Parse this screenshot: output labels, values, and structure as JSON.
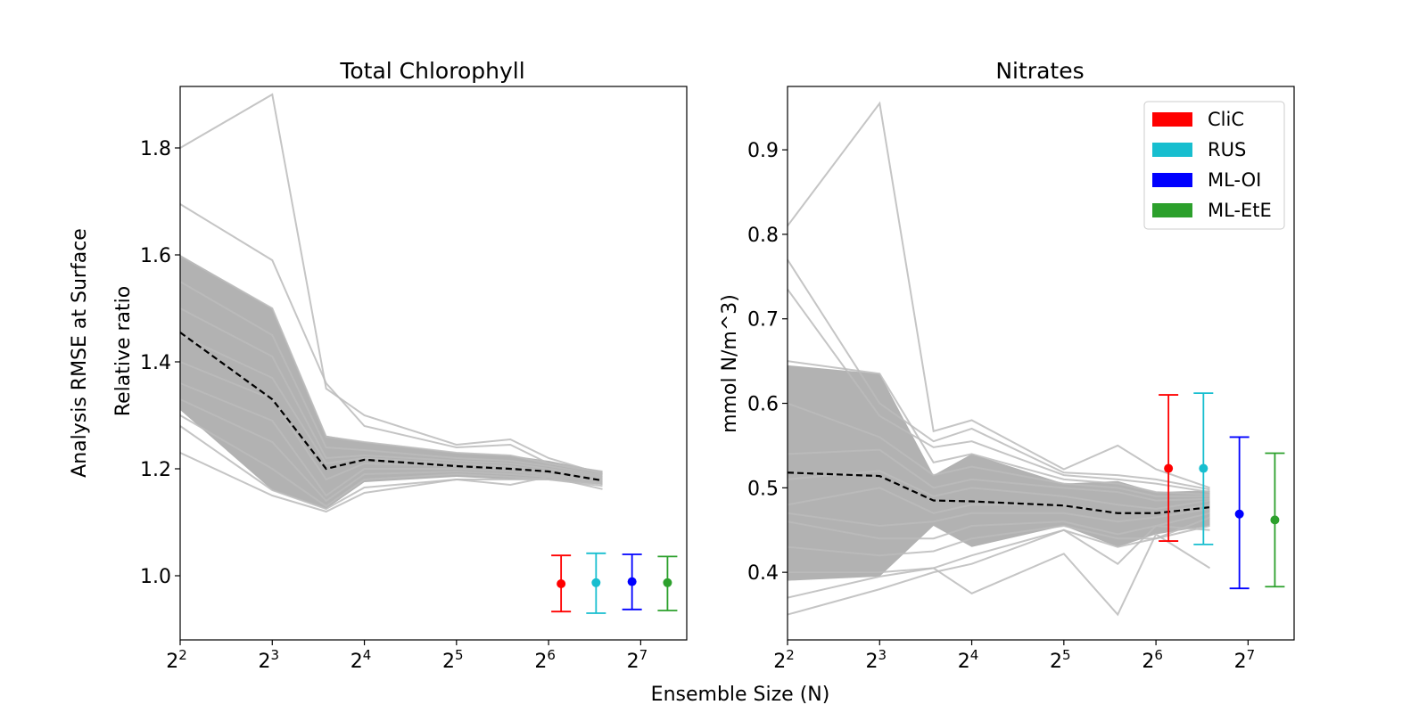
{
  "figure": {
    "suptitle_ylabel": "Analysis RMSE at Surface",
    "xlabel": "Ensemble Size (N)"
  },
  "chart_data": [
    {
      "type": "line",
      "title": "Total Chlorophyll",
      "xlabel": "Ensemble Size (N)",
      "ylabel": "Relative ratio",
      "xscale": "log2",
      "xlim": [
        4,
        181
      ],
      "ylim": [
        0.88,
        1.915
      ],
      "xticks": [
        {
          "base": "2",
          "exp": "2"
        },
        {
          "base": "2",
          "exp": "3"
        },
        {
          "base": "2",
          "exp": "4"
        },
        {
          "base": "2",
          "exp": "5"
        },
        {
          "base": "2",
          "exp": "6"
        },
        {
          "base": "2",
          "exp": "7"
        }
      ],
      "yticks": [
        "1.0",
        "1.2",
        "1.4",
        "1.6",
        "1.8"
      ],
      "ytick_values": [
        1.0,
        1.2,
        1.4,
        1.6,
        1.8
      ],
      "x": [
        4,
        8,
        12,
        16,
        32,
        48,
        64,
        96
      ],
      "members_color": "#bbbbbb",
      "members": [
        [
          1.8,
          1.9,
          1.35,
          1.3,
          1.245,
          1.255,
          1.22,
          1.19
        ],
        [
          1.695,
          1.59,
          1.36,
          1.28,
          1.24,
          1.245,
          1.21,
          1.195
        ],
        [
          1.598,
          1.5,
          1.26,
          1.25,
          1.23,
          1.225,
          1.21,
          1.192
        ],
        [
          1.55,
          1.45,
          1.24,
          1.235,
          1.22,
          1.215,
          1.205,
          1.188
        ],
        [
          1.5,
          1.41,
          1.22,
          1.225,
          1.215,
          1.21,
          1.2,
          1.185
        ],
        [
          1.45,
          1.37,
          1.21,
          1.22,
          1.21,
          1.205,
          1.195,
          1.182
        ],
        [
          1.4,
          1.33,
          1.18,
          1.21,
          1.205,
          1.2,
          1.19,
          1.18
        ],
        [
          1.36,
          1.29,
          1.15,
          1.2,
          1.2,
          1.195,
          1.188,
          1.178
        ],
        [
          1.33,
          1.25,
          1.14,
          1.19,
          1.195,
          1.19,
          1.185,
          1.175
        ],
        [
          1.3,
          1.2,
          1.13,
          1.18,
          1.19,
          1.185,
          1.18,
          1.172
        ],
        [
          1.28,
          1.16,
          1.125,
          1.165,
          1.18,
          1.18,
          1.18,
          1.168
        ],
        [
          1.23,
          1.15,
          1.12,
          1.155,
          1.18,
          1.17,
          1.185,
          1.162
        ]
      ],
      "band_upper": [
        1.6,
        1.5,
        1.262,
        1.25,
        1.23,
        1.225,
        1.215,
        1.195
      ],
      "band_lower": [
        1.31,
        1.16,
        1.125,
        1.175,
        1.185,
        1.18,
        1.18,
        1.17
      ],
      "band_color": "#888888",
      "mean": [
        1.455,
        1.33,
        1.2,
        1.217,
        1.205,
        1.2,
        1.195,
        1.178
      ],
      "errorbars": [
        {
          "name": "CliC",
          "mean": 0.985,
          "low": 0.933,
          "high": 1.038,
          "color": "#ff0000"
        },
        {
          "name": "RUS",
          "mean": 0.987,
          "low": 0.93,
          "high": 1.042,
          "color": "#17becf"
        },
        {
          "name": "ML-OI",
          "mean": 0.989,
          "low": 0.937,
          "high": 1.04,
          "color": "#0000ff"
        },
        {
          "name": "ML-EtE",
          "mean": 0.987,
          "low": 0.935,
          "high": 1.036,
          "color": "#2ca02c"
        }
      ]
    },
    {
      "type": "line",
      "title": "Nitrates",
      "xlabel": "Ensemble Size (N)",
      "ylabel": "mmol N/m^3)",
      "xscale": "log2",
      "xlim": [
        4,
        181
      ],
      "ylim": [
        0.32,
        0.975
      ],
      "xticks": [
        {
          "base": "2",
          "exp": "2"
        },
        {
          "base": "2",
          "exp": "3"
        },
        {
          "base": "2",
          "exp": "4"
        },
        {
          "base": "2",
          "exp": "5"
        },
        {
          "base": "2",
          "exp": "6"
        },
        {
          "base": "2",
          "exp": "7"
        }
      ],
      "yticks": [
        "0.4",
        "0.5",
        "0.6",
        "0.7",
        "0.8",
        "0.9"
      ],
      "ytick_values": [
        0.4,
        0.5,
        0.6,
        0.7,
        0.8,
        0.9
      ],
      "x": [
        4,
        8,
        12,
        16,
        32,
        48,
        64,
        96
      ],
      "members_color": "#bbbbbb",
      "members": [
        [
          0.81,
          0.955,
          0.567,
          0.58,
          0.522,
          0.55,
          0.522,
          0.5
        ],
        [
          0.77,
          0.6,
          0.555,
          0.57,
          0.518,
          0.515,
          0.51,
          0.498
        ],
        [
          0.735,
          0.585,
          0.548,
          0.555,
          0.515,
          0.51,
          0.505,
          0.495
        ],
        [
          0.65,
          0.635,
          0.53,
          0.54,
          0.51,
          0.505,
          0.495,
          0.492
        ],
        [
          0.6,
          0.56,
          0.515,
          0.525,
          0.505,
          0.5,
          0.49,
          0.49
        ],
        [
          0.54,
          0.545,
          0.5,
          0.51,
          0.5,
          0.495,
          0.485,
          0.487
        ],
        [
          0.51,
          0.52,
          0.49,
          0.5,
          0.49,
          0.48,
          0.475,
          0.485
        ],
        [
          0.48,
          0.5,
          0.47,
          0.48,
          0.48,
          0.47,
          0.47,
          0.48
        ],
        [
          0.47,
          0.455,
          0.46,
          0.47,
          0.47,
          0.46,
          0.465,
          0.475
        ],
        [
          0.46,
          0.44,
          0.44,
          0.455,
          0.46,
          0.445,
          0.455,
          0.47
        ],
        [
          0.43,
          0.42,
          0.425,
          0.44,
          0.455,
          0.44,
          0.44,
          0.465
        ],
        [
          0.4,
          0.4,
          0.405,
          0.42,
          0.45,
          0.43,
          0.44,
          0.455
        ],
        [
          0.37,
          0.395,
          0.405,
          0.375,
          0.422,
          0.35,
          0.445,
          0.405
        ],
        [
          0.35,
          0.38,
          0.4,
          0.41,
          0.45,
          0.41,
          0.455,
          0.45
        ]
      ],
      "band_upper": [
        0.645,
        0.635,
        0.515,
        0.54,
        0.505,
        0.508,
        0.495,
        0.497
      ],
      "band_lower": [
        0.39,
        0.395,
        0.455,
        0.43,
        0.455,
        0.43,
        0.445,
        0.455
      ],
      "band_color": "#888888",
      "mean": [
        0.518,
        0.514,
        0.485,
        0.484,
        0.479,
        0.47,
        0.47,
        0.477
      ],
      "errorbars": [
        {
          "name": "CliC",
          "mean": 0.523,
          "low": 0.437,
          "high": 0.61,
          "color": "#ff0000"
        },
        {
          "name": "RUS",
          "mean": 0.523,
          "low": 0.433,
          "high": 0.612,
          "color": "#17becf"
        },
        {
          "name": "ML-OI",
          "mean": 0.469,
          "low": 0.381,
          "high": 0.56,
          "color": "#0000ff"
        },
        {
          "name": "ML-EtE",
          "mean": 0.462,
          "low": 0.383,
          "high": 0.541,
          "color": "#2ca02c"
        }
      ],
      "legend": {
        "position": "top-right",
        "entries": [
          {
            "label": "CliC",
            "color": "#ff0000"
          },
          {
            "label": "RUS",
            "color": "#17becf"
          },
          {
            "label": "ML-OI",
            "color": "#0000ff"
          },
          {
            "label": "ML-EtE",
            "color": "#2ca02c"
          }
        ]
      }
    }
  ]
}
